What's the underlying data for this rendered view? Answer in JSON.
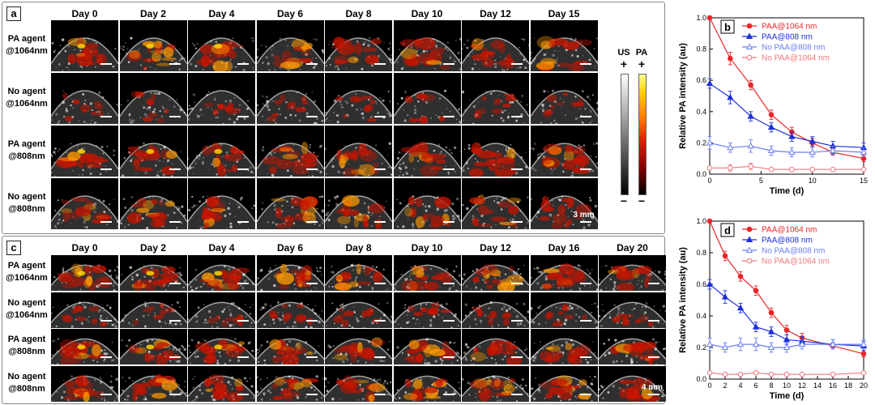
{
  "panel_a": {
    "tag": "a",
    "days": [
      "Day 0",
      "Day 2",
      "Day 4",
      "Day 6",
      "Day 8",
      "Day 10",
      "Day 12",
      "Day 15"
    ],
    "rows": [
      [
        "PA agent",
        "@1064nm"
      ],
      [
        "No agent",
        "@1064nm"
      ],
      [
        "PA agent",
        "@808nm"
      ],
      [
        "No agent",
        "@808nm"
      ]
    ],
    "scale_label": "3 mm",
    "colorbar": {
      "us_label": "US",
      "pa_label": "PA",
      "plus": "+",
      "minus": "−"
    }
  },
  "panel_c": {
    "tag": "c",
    "days": [
      "Day 0",
      "Day 2",
      "Day 4",
      "Day 6",
      "Day 8",
      "Day 10",
      "Day 12",
      "Day 16",
      "Day 20"
    ],
    "rows": [
      [
        "PA agent",
        "@1064nm"
      ],
      [
        "No agent",
        "@1064nm"
      ],
      [
        "PA agent",
        "@808nm"
      ],
      [
        "No agent",
        "@808nm"
      ]
    ],
    "scale_label": "4 mm"
  },
  "chart_data": [
    {
      "panel": "b",
      "type": "line",
      "xlabel": "Time (d)",
      "ylabel": "Relative PA intensity (au)",
      "xlim": [
        0,
        15
      ],
      "ylim": [
        0,
        1.0
      ],
      "xticks": [
        0,
        5,
        10,
        15
      ],
      "yticks": [
        0.0,
        0.2,
        0.4,
        0.6,
        0.8,
        1.0
      ],
      "legend_position": "top-right",
      "series": [
        {
          "name": "PAA@1064 nm",
          "color": "#e8262a",
          "marker": "circle-filled",
          "x": [
            0,
            2,
            4,
            6,
            8,
            10,
            12,
            15
          ],
          "y": [
            1.0,
            0.74,
            0.57,
            0.38,
            0.27,
            0.2,
            0.14,
            0.1
          ],
          "err": [
            0.01,
            0.04,
            0.03,
            0.03,
            0.03,
            0.03,
            0.02,
            0.02
          ]
        },
        {
          "name": "PAA@808 nm",
          "color": "#1c2fd8",
          "marker": "triangle-filled",
          "x": [
            0,
            2,
            4,
            6,
            8,
            10,
            12,
            15
          ],
          "y": [
            0.58,
            0.49,
            0.37,
            0.3,
            0.24,
            0.21,
            0.18,
            0.17
          ],
          "err": [
            0.03,
            0.04,
            0.03,
            0.03,
            0.03,
            0.03,
            0.03,
            0.03
          ]
        },
        {
          "name": "No PAA@808 nm",
          "color": "#6a7ff0",
          "marker": "triangle-open",
          "x": [
            0,
            2,
            4,
            6,
            8,
            10,
            12,
            15
          ],
          "y": [
            0.2,
            0.17,
            0.18,
            0.15,
            0.14,
            0.14,
            0.15,
            0.14
          ],
          "err": [
            0.04,
            0.03,
            0.04,
            0.03,
            0.03,
            0.03,
            0.03,
            0.03
          ]
        },
        {
          "name": "No PAA@1064 nm",
          "color": "#f0787c",
          "marker": "circle-open",
          "x": [
            0,
            2,
            4,
            6,
            8,
            10,
            12,
            15
          ],
          "y": [
            0.04,
            0.04,
            0.05,
            0.03,
            0.03,
            0.03,
            0.03,
            0.03
          ],
          "err": [
            0.01,
            0.02,
            0.02,
            0.01,
            0.01,
            0.01,
            0.01,
            0.01
          ]
        }
      ]
    },
    {
      "panel": "d",
      "type": "line",
      "xlabel": "Time (d)",
      "ylabel": "Relative PA intensity (au)",
      "xlim": [
        0,
        20
      ],
      "ylim": [
        0,
        1.0
      ],
      "xticks": [
        0,
        2,
        4,
        6,
        8,
        10,
        12,
        14,
        16,
        18,
        20
      ],
      "yticks": [
        0.0,
        0.2,
        0.4,
        0.6,
        0.8,
        1.0
      ],
      "legend_position": "top-right",
      "series": [
        {
          "name": "PAA@1064 nm",
          "color": "#e8262a",
          "marker": "circle-filled",
          "x": [
            0,
            2,
            4,
            6,
            8,
            10,
            12,
            16,
            20
          ],
          "y": [
            1.0,
            0.78,
            0.65,
            0.56,
            0.42,
            0.31,
            0.26,
            0.21,
            0.16
          ],
          "err": [
            0.01,
            0.03,
            0.03,
            0.03,
            0.03,
            0.03,
            0.03,
            0.02,
            0.02
          ]
        },
        {
          "name": "PAA@808 nm",
          "color": "#1c2fd8",
          "marker": "triangle-filled",
          "x": [
            0,
            2,
            4,
            6,
            8,
            10,
            12,
            16,
            20
          ],
          "y": [
            0.6,
            0.52,
            0.45,
            0.33,
            0.3,
            0.25,
            0.24,
            0.22,
            0.21
          ],
          "err": [
            0.03,
            0.04,
            0.03,
            0.03,
            0.03,
            0.03,
            0.03,
            0.03,
            0.03
          ]
        },
        {
          "name": "No PAA@808 nm",
          "color": "#6a7ff0",
          "marker": "triangle-open",
          "x": [
            0,
            2,
            4,
            6,
            8,
            10,
            12,
            16,
            20
          ],
          "y": [
            0.22,
            0.2,
            0.22,
            0.22,
            0.2,
            0.2,
            0.22,
            0.22,
            0.22
          ],
          "err": [
            0.04,
            0.03,
            0.04,
            0.04,
            0.03,
            0.03,
            0.03,
            0.03,
            0.03
          ]
        },
        {
          "name": "No PAA@1064 nm",
          "color": "#f0787c",
          "marker": "circle-open",
          "x": [
            0,
            2,
            4,
            6,
            8,
            10,
            12,
            16,
            20
          ],
          "y": [
            0.04,
            0.03,
            0.03,
            0.04,
            0.03,
            0.03,
            0.03,
            0.03,
            0.04
          ],
          "err": [
            0.01,
            0.01,
            0.01,
            0.01,
            0.01,
            0.01,
            0.01,
            0.01,
            0.01
          ]
        }
      ]
    }
  ]
}
